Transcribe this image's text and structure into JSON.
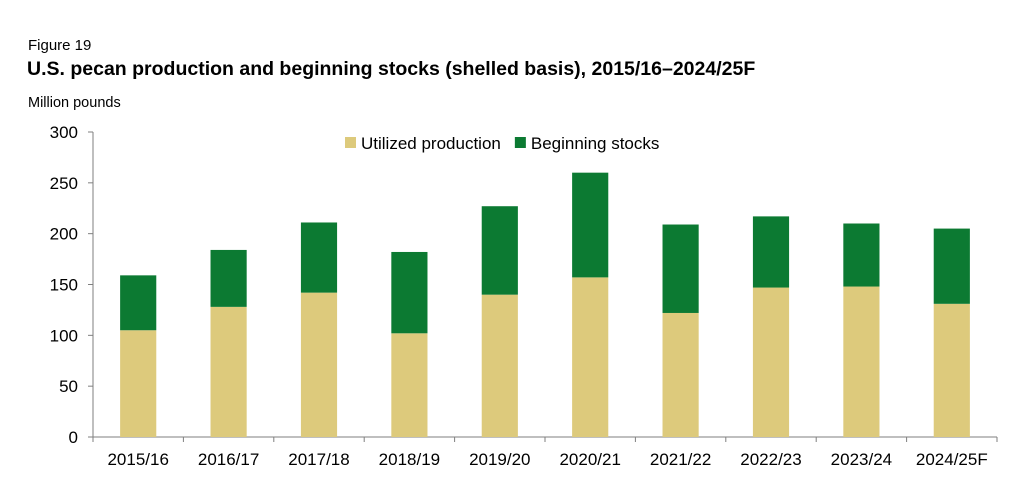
{
  "figure_label": "Figure 19",
  "chart_data": {
    "type": "bar",
    "stacked": true,
    "title": "U.S. pecan production and beginning stocks (shelled basis), 2015/16–2024/25F",
    "ylabel": "Million pounds",
    "xlabel": "",
    "ylim": [
      0,
      300
    ],
    "yticks": [
      0,
      50,
      100,
      150,
      200,
      250,
      300
    ],
    "categories": [
      "2015/16",
      "2016/17",
      "2017/18",
      "2018/19",
      "2019/20",
      "2020/21",
      "2021/22",
      "2022/23",
      "2023/24",
      "2024/25F"
    ],
    "series": [
      {
        "name": "Utilized production",
        "color": "#DDCA7C",
        "values": [
          105,
          128,
          142,
          102,
          140,
          157,
          122,
          147,
          148,
          131
        ]
      },
      {
        "name": "Beginning stocks",
        "color": "#0C7A32",
        "values": [
          54,
          56,
          69,
          80,
          87,
          103,
          87,
          70,
          62,
          74
        ]
      }
    ],
    "legend_position": "top-center",
    "grid": false
  }
}
